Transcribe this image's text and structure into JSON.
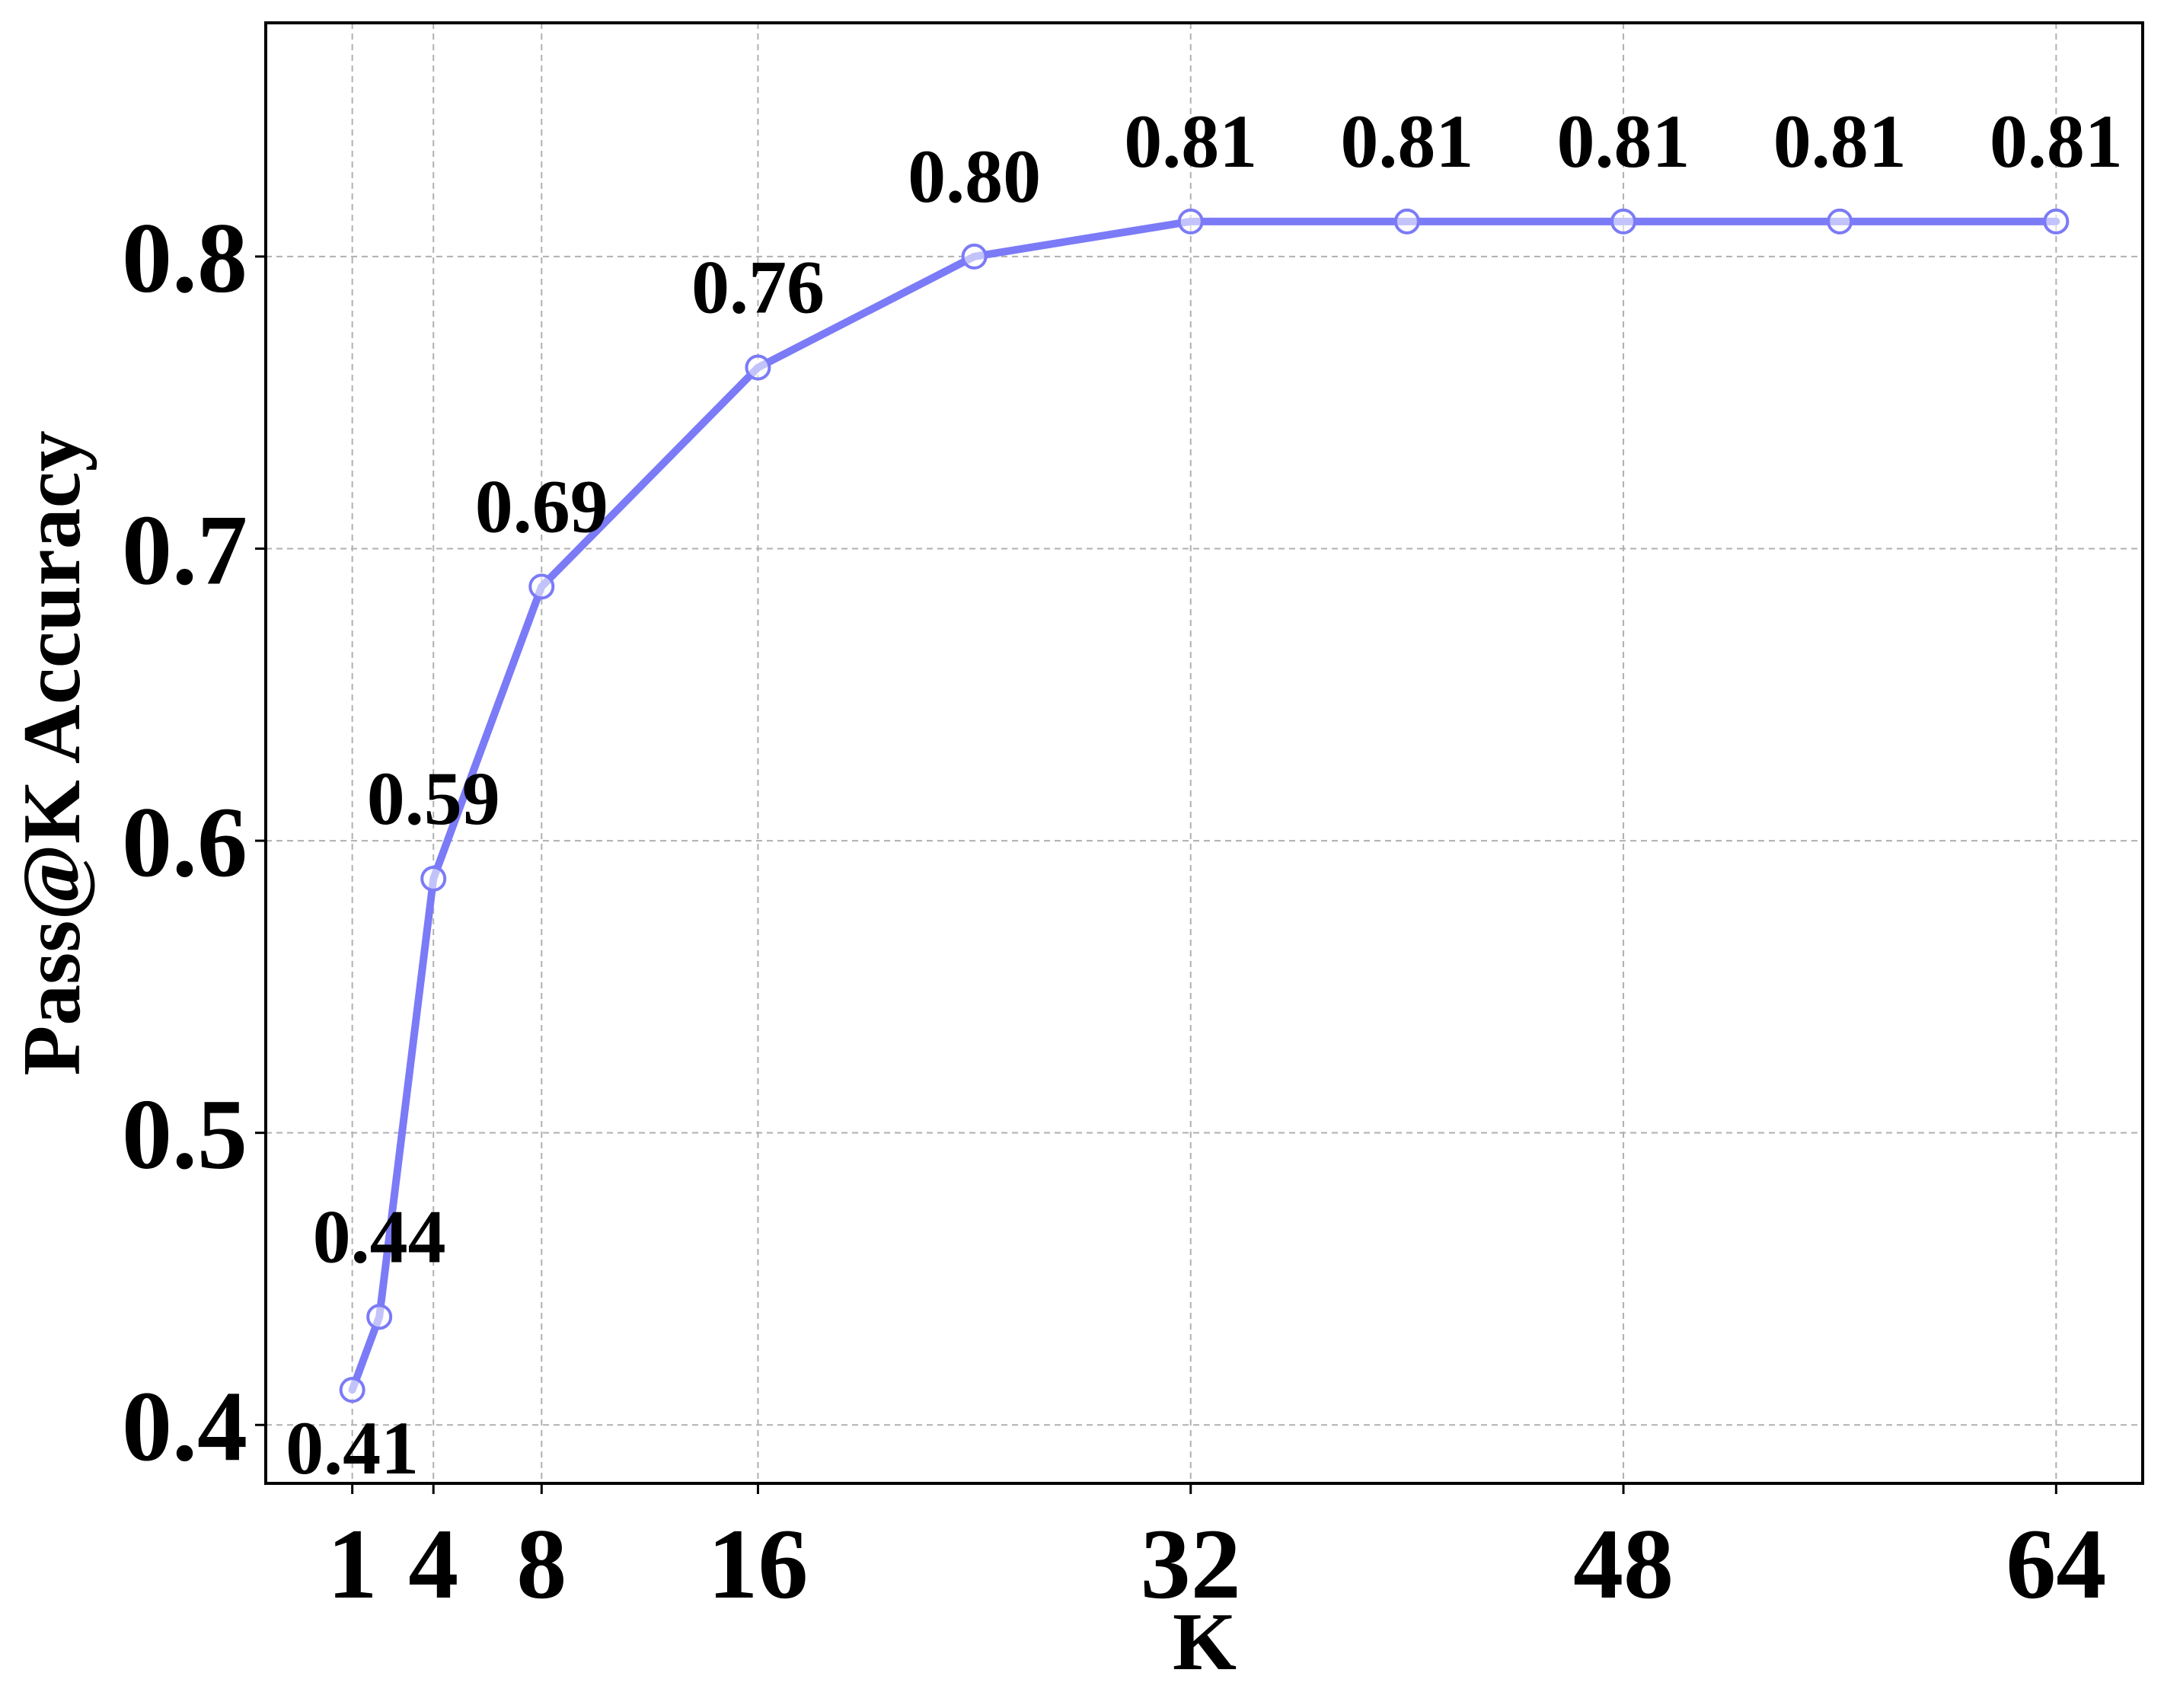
{
  "chart_data": {
    "type": "line",
    "xlabel": "K",
    "ylabel": "Pass@K Accuracy",
    "x": [
      1,
      2,
      4,
      8,
      16,
      24,
      32,
      40,
      48,
      56,
      64
    ],
    "series": [
      {
        "values": [
          0.412,
          0.437,
          0.587,
          0.687,
          0.762,
          0.8,
          0.812,
          0.812,
          0.812,
          0.812,
          0.812
        ],
        "color": "#7b7bf7",
        "marker": "circle-open"
      }
    ],
    "data_labels": [
      "0.41",
      "0.44",
      "0.59",
      "0.69",
      "0.76",
      "0.80",
      "0.81",
      "0.81",
      "0.81",
      "0.81",
      "0.81"
    ],
    "xticks": [
      1,
      4,
      8,
      16,
      32,
      48,
      64
    ],
    "xtick_labels": [
      "1",
      "4",
      "8",
      "16",
      "32",
      "48",
      "64"
    ],
    "yticks": [
      0.4,
      0.5,
      0.6,
      0.7,
      0.8
    ],
    "ytick_labels": [
      "0.4",
      "0.5",
      "0.6",
      "0.7",
      "0.8"
    ],
    "xlim": [
      -2.2,
      67.2
    ],
    "ylim": [
      0.38,
      0.88
    ],
    "grid": true,
    "legend": "none"
  }
}
